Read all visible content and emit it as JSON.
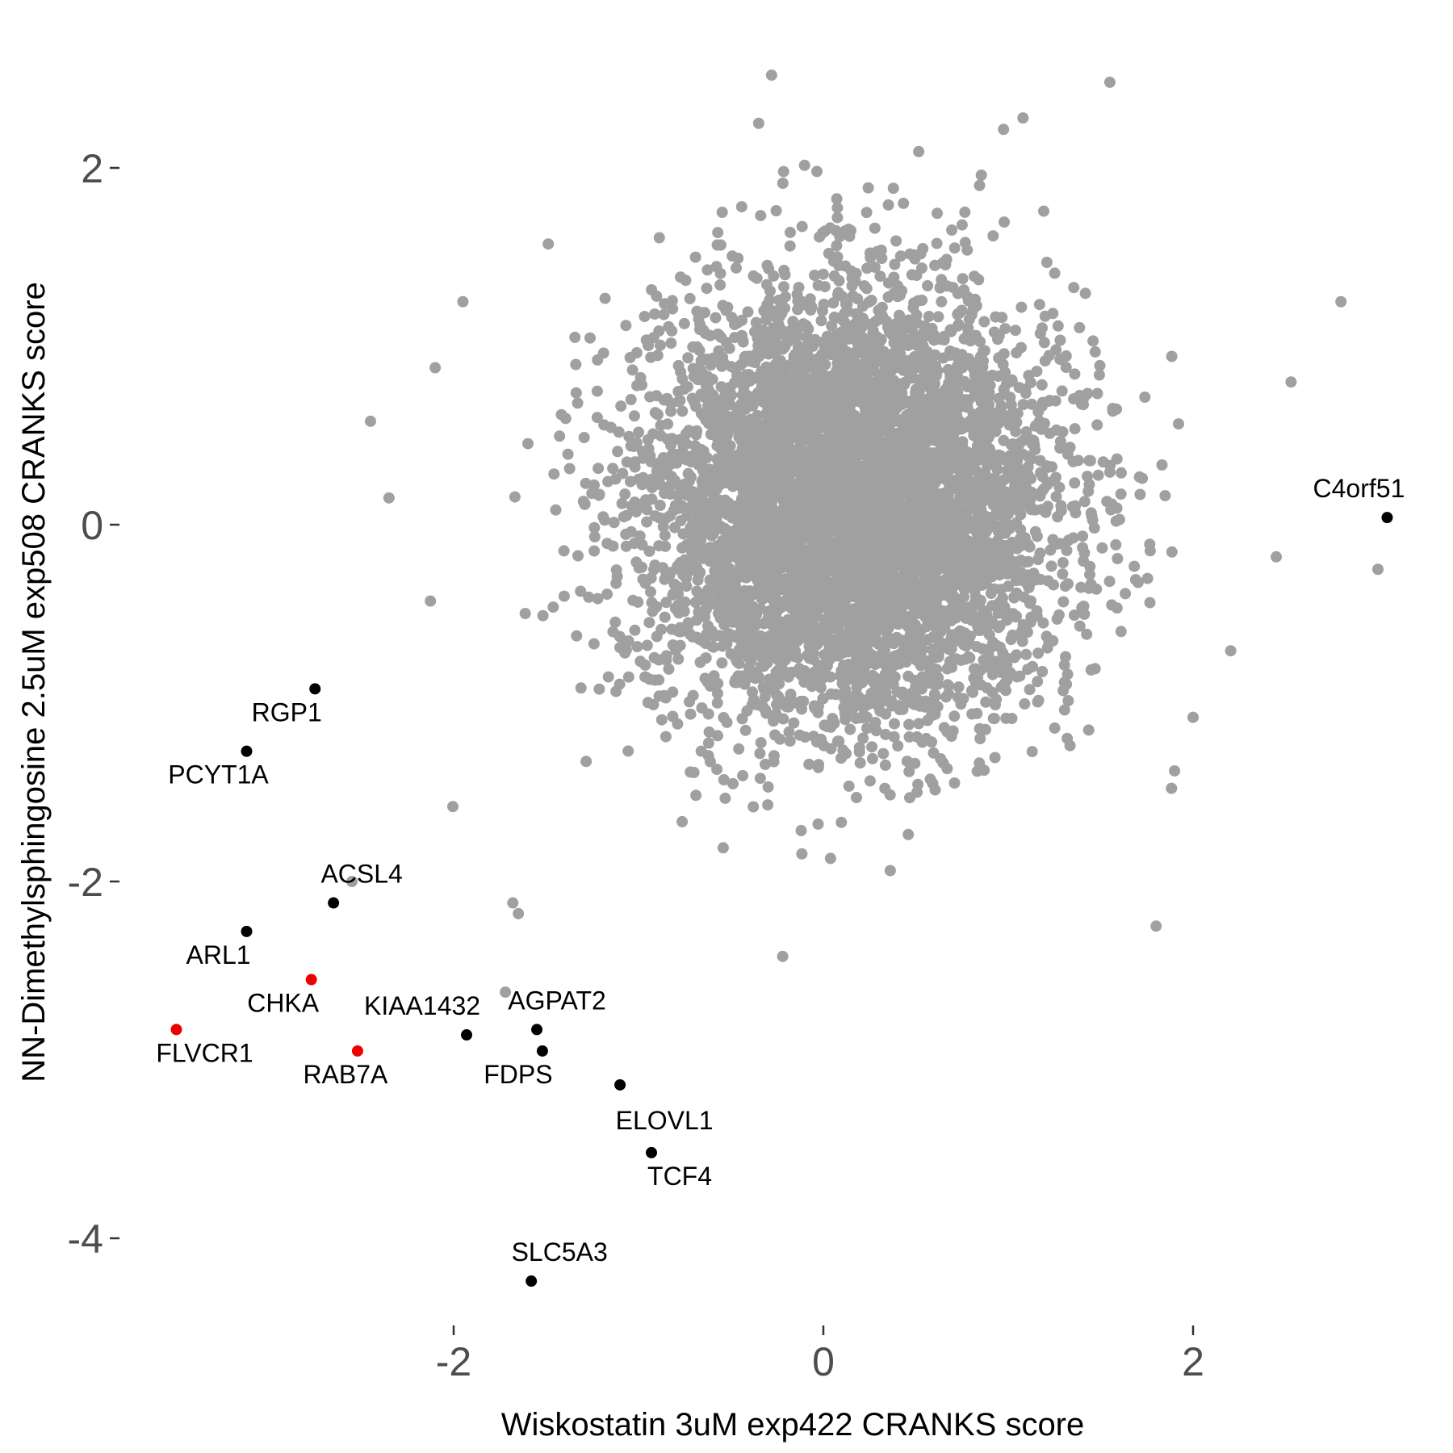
{
  "chart_data": {
    "type": "scatter",
    "title": "",
    "xlabel": "Wiskostatin 3uM exp422 CRANKS score",
    "ylabel": "NN-Dimethylsphingosine 2.5uM exp508 CRANKS score",
    "xlim": [
      -3.6,
      3.4
    ],
    "ylim": [
      -4.6,
      2.6
    ],
    "x_ticks": [
      {
        "value": -2,
        "label": "-2"
      },
      {
        "value": 0,
        "label": "0"
      },
      {
        "value": 2,
        "label": "2"
      }
    ],
    "y_ticks": [
      {
        "value": 2,
        "label": "2"
      },
      {
        "value": 0,
        "label": "0"
      },
      {
        "value": -2,
        "label": "-2"
      },
      {
        "value": -4,
        "label": "-4"
      }
    ],
    "grid": false,
    "legend": "none",
    "colors": {
      "background_points": "#a0a0a0",
      "highlight": "#000000",
      "highlight_red": "#ee0000",
      "tick_text": "#4d4d4d"
    },
    "background_cloud": {
      "note": "dense cloud of unlabeled genes, approx. normally distributed",
      "center": [
        0.15,
        0.1
      ],
      "sd": [
        0.55,
        0.6
      ],
      "count": 6000
    },
    "outliers": [
      [
        -0.28,
        2.52
      ],
      [
        1.55,
        2.48
      ],
      [
        1.08,
        2.28
      ],
      [
        -0.35,
        2.25
      ],
      [
        2.8,
        1.25
      ],
      [
        2.53,
        0.8
      ],
      [
        -2.45,
        0.58
      ],
      [
        -2.35,
        0.15
      ],
      [
        1.8,
        -2.25
      ],
      [
        -0.22,
        -2.42
      ],
      [
        -1.72,
        -2.62
      ],
      [
        3.0,
        -0.25
      ],
      [
        2.45,
        -0.18
      ],
      [
        -2.55,
        -2.0
      ],
      [
        -1.68,
        -2.12
      ],
      [
        -1.65,
        -2.18
      ],
      [
        1.9,
        -1.38
      ],
      [
        2.0,
        -1.08
      ],
      [
        -2.1,
        0.88
      ],
      [
        -1.95,
        1.25
      ]
    ],
    "labeled_points": [
      {
        "name": "C4orf51",
        "x": 3.05,
        "y": 0.04,
        "color": "black"
      },
      {
        "name": "RGP1",
        "x": -2.75,
        "y": -0.92,
        "color": "black"
      },
      {
        "name": "PCYT1A",
        "x": -3.12,
        "y": -1.27,
        "color": "black"
      },
      {
        "name": "ACSL4",
        "x": -2.65,
        "y": -2.12,
        "color": "black"
      },
      {
        "name": "ARL1",
        "x": -3.12,
        "y": -2.28,
        "color": "black"
      },
      {
        "name": "CHKA",
        "x": -2.77,
        "y": -2.55,
        "color": "red"
      },
      {
        "name": "FLVCR1",
        "x": -3.5,
        "y": -2.83,
        "color": "red"
      },
      {
        "name": "RAB7A",
        "x": -2.52,
        "y": -2.95,
        "color": "red"
      },
      {
        "name": "KIAA1432",
        "x": -1.93,
        "y": -2.86,
        "color": "black"
      },
      {
        "name": "AGPAT2",
        "x": -1.55,
        "y": -2.83,
        "color": "black"
      },
      {
        "name": "FDPS",
        "x": -1.52,
        "y": -2.95,
        "color": "black"
      },
      {
        "name": "ELOVL1",
        "x": -1.1,
        "y": -3.14,
        "color": "black"
      },
      {
        "name": "TCF4",
        "x": -0.93,
        "y": -3.52,
        "color": "black"
      },
      {
        "name": "SLC5A3",
        "x": -1.58,
        "y": -4.24,
        "color": "black"
      }
    ]
  }
}
